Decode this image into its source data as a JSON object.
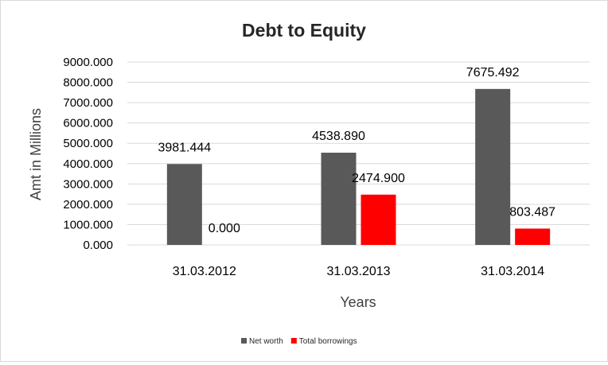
{
  "chart_data": {
    "type": "bar",
    "title": "Debt to Equity",
    "xlabel": "Years",
    "ylabel": "Amt in Millions",
    "categories": [
      "31.03.2012",
      "31.03.2013",
      "31.03.2014"
    ],
    "series": [
      {
        "name": "Net worth",
        "color": "#595959",
        "values": [
          3981.444,
          4538.89,
          7675.492
        ],
        "labels": [
          "3981.444",
          "4538.890",
          "7675.492"
        ]
      },
      {
        "name": "Total borrowings",
        "color": "#ff0000",
        "values": [
          0.0,
          2474.9,
          803.487
        ],
        "labels": [
          "0.000",
          "2474.900",
          "803.487"
        ]
      }
    ],
    "ylim": [
      0,
      9000
    ],
    "yticks": [
      0,
      1000,
      2000,
      3000,
      4000,
      5000,
      6000,
      7000,
      8000,
      9000
    ],
    "ytick_labels": [
      "0.000",
      "1000.000",
      "2000.000",
      "3000.000",
      "4000.000",
      "5000.000",
      "6000.000",
      "7000.000",
      "8000.000",
      "9000.000"
    ],
    "grid": true,
    "legend_position": "bottom"
  }
}
